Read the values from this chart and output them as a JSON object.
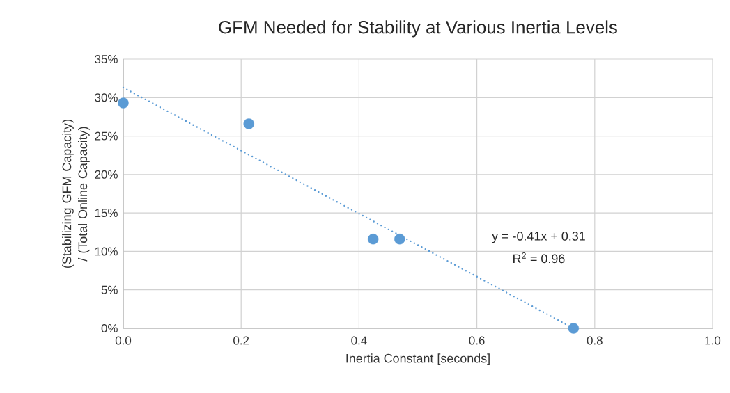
{
  "chart_data": {
    "type": "scatter",
    "title": "GFM Needed for Stability at Various Inertia Levels",
    "xlabel": "Inertia Constant [seconds]",
    "ylabel": "(Stabilizing GFM Capacity) / (Total Online Capacity)",
    "series": [
      {
        "color": "#5b9bd5",
        "marker": "circle",
        "x": [
          0.0,
          0.213,
          0.424,
          0.469,
          0.764
        ],
        "values": [
          29.3,
          26.6,
          11.6,
          11.6,
          0
        ]
      },
      {
        "type": "line",
        "color": "#5b9bd5",
        "marker": "none",
        "line_style": "dotted",
        "x": [
          0.0,
          0.764
        ],
        "values": [
          31.3,
          0
        ]
      }
    ],
    "annotations": [
      "y = -0.41x + 0.31",
      "R$^{2}$ = 0.96"
    ],
    "xlim": [
      0,
      1
    ],
    "ylim": [
      0,
      35
    ],
    "xticks": [
      {
        "value": 0,
        "label": "0.0"
      },
      0.2,
      0.4,
      0.6,
      0.8,
      {
        "value": 1,
        "label": "1.0"
      }
    ],
    "yticks": [
      {
        "value": 0,
        "label": "0%"
      },
      {
        "value": 5,
        "label": "5%"
      },
      {
        "value": 10,
        "label": "10%"
      },
      {
        "value": 15,
        "label": "15%"
      },
      {
        "value": 20,
        "label": "20%"
      },
      {
        "value": 25,
        "label": "25%"
      },
      {
        "value": 30,
        "label": "30%"
      },
      {
        "value": 35,
        "label": "35%"
      }
    ],
    "grid": true
  }
}
